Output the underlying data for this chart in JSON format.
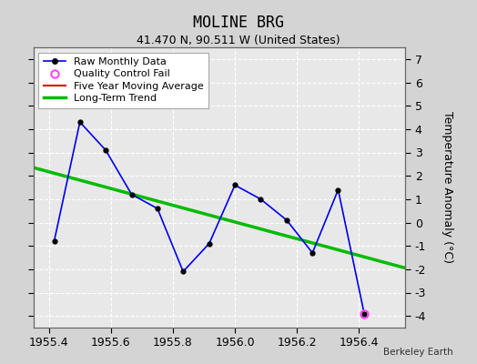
{
  "title": "MOLINE BRG",
  "subtitle": "41.470 N, 90.511 W (United States)",
  "credit": "Berkeley Earth",
  "raw_x": [
    1955.417,
    1955.5,
    1955.583,
    1955.667,
    1955.75,
    1955.833,
    1955.917,
    1956.0,
    1956.083,
    1956.167,
    1956.25,
    1956.333,
    1956.417
  ],
  "raw_y": [
    -0.8,
    4.3,
    3.1,
    1.2,
    0.6,
    -2.1,
    -0.9,
    1.6,
    1.0,
    0.1,
    -1.3,
    1.4,
    -3.9
  ],
  "qc_fail_x": [
    1956.417
  ],
  "qc_fail_y": [
    -3.9
  ],
  "trend_x": [
    1955.35,
    1956.55
  ],
  "trend_y": [
    2.35,
    -1.95
  ],
  "xlim": [
    1955.35,
    1956.55
  ],
  "ylim": [
    -4.5,
    7.5
  ],
  "yticks": [
    -4,
    -3,
    -2,
    -1,
    0,
    1,
    2,
    3,
    4,
    5,
    6,
    7
  ],
  "xticks": [
    1955.4,
    1955.6,
    1955.8,
    1956.0,
    1956.2,
    1956.4
  ],
  "raw_color": "#0000ee",
  "raw_marker_color": "#000000",
  "qc_color": "#ff44ff",
  "trend_color": "#00bb00",
  "ma_color": "#dd0000",
  "bg_color": "#d4d4d4",
  "plot_bg_color": "#e8e8e8",
  "grid_color": "#ffffff",
  "ylabel": "Temperature Anomaly (°C)",
  "legend_labels": [
    "Raw Monthly Data",
    "Quality Control Fail",
    "Five Year Moving Average",
    "Long-Term Trend"
  ]
}
